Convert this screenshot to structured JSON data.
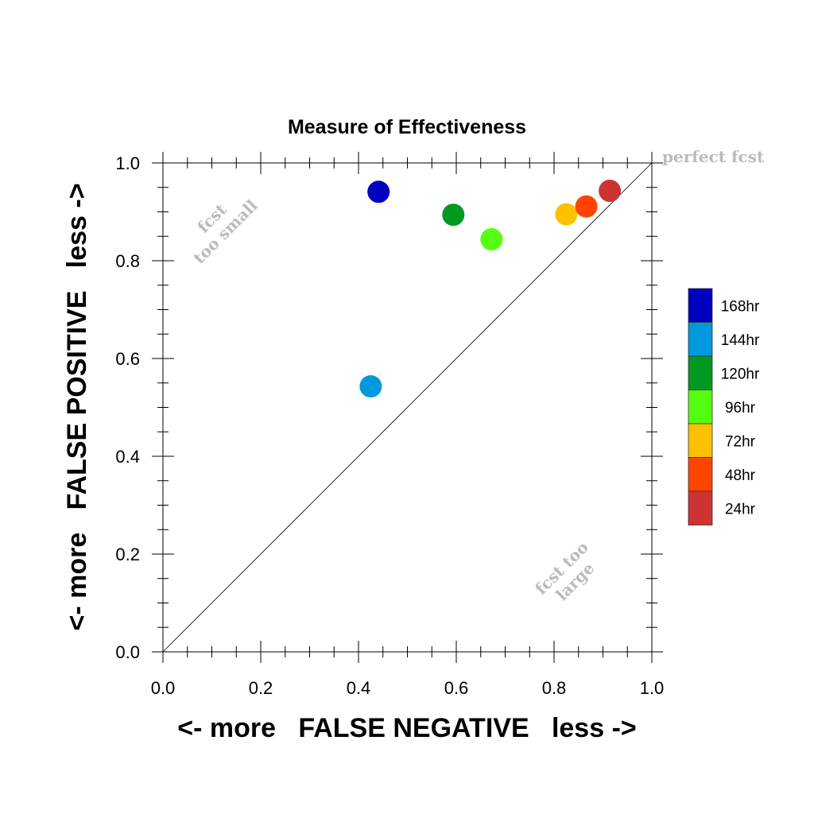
{
  "chart_data": {
    "type": "scatter",
    "title": "Measure of Effectiveness",
    "xlabel": "<- more   FALSE NEGATIVE   less ->",
    "ylabel": "<- more   FALSE POSITIVE   less ->",
    "xlim": [
      0.0,
      1.0
    ],
    "ylim": [
      0.0,
      1.0
    ],
    "xticks": [
      "0.0",
      "0.2",
      "0.4",
      "0.6",
      "0.8",
      "1.0"
    ],
    "yticks": [
      "0.0",
      "0.2",
      "0.4",
      "0.6",
      "0.8",
      "1.0"
    ],
    "grid": false,
    "diagonal_line": true,
    "annotations": {
      "perfect": "perfect fcst",
      "small_line1": "fcst",
      "small_line2": "too small",
      "large_line1": "fcst too",
      "large_line2": "large"
    },
    "legend_position": "right",
    "series": [
      {
        "name": "168hr",
        "color": "#0000c0",
        "x": 0.441,
        "y": 0.941
      },
      {
        "name": "144hr",
        "color": "#0099dd",
        "x": 0.425,
        "y": 0.543
      },
      {
        "name": "120hr",
        "color": "#009922",
        "x": 0.594,
        "y": 0.894
      },
      {
        "name": "96hr",
        "color": "#55ff11",
        "x": 0.672,
        "y": 0.844
      },
      {
        "name": "72hr",
        "color": "#ffc000",
        "x": 0.825,
        "y": 0.895
      },
      {
        "name": "48hr",
        "color": "#ff4400",
        "x": 0.866,
        "y": 0.911
      },
      {
        "name": "24hr",
        "color": "#cc3333",
        "x": 0.914,
        "y": 0.943
      }
    ]
  }
}
